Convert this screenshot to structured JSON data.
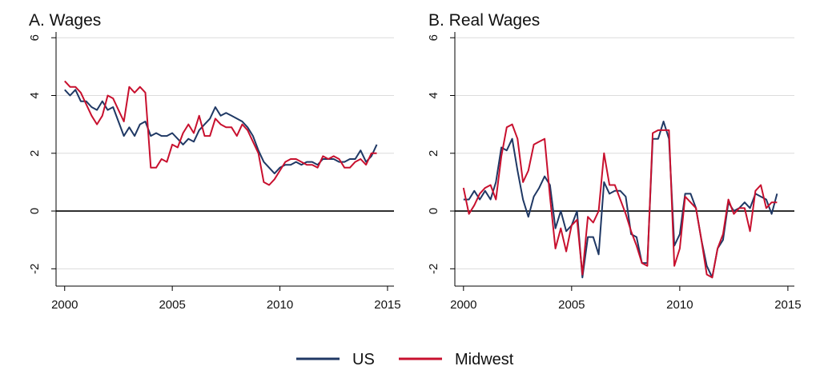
{
  "colors": {
    "us": "#1f3864",
    "midwest": "#c8102e",
    "grid": "#dcdcdc",
    "axis": "#000000",
    "zero": "#000000"
  },
  "legend": {
    "position": "bottom-center",
    "items": [
      {
        "label": "US",
        "color": "#1f3864"
      },
      {
        "label": "Midwest",
        "color": "#c8102e"
      }
    ]
  },
  "chart_data": [
    {
      "type": "line",
      "title": "A. Wages",
      "xlabel": "",
      "ylabel": "",
      "xlim": [
        1999.6,
        2015.3
      ],
      "ylim": [
        -2.6,
        6.2
      ],
      "xticks": [
        2000,
        2005,
        2010,
        2015
      ],
      "yticks": [
        -2,
        0,
        2,
        4,
        6
      ],
      "grid": "horizontal",
      "zero_line": true,
      "series": [
        {
          "name": "US",
          "x": [
            2000,
            2000.25,
            2000.5,
            2000.75,
            2001,
            2001.25,
            2001.5,
            2001.75,
            2002,
            2002.25,
            2002.5,
            2002.75,
            2003,
            2003.25,
            2003.5,
            2003.75,
            2004,
            2004.25,
            2004.5,
            2004.75,
            2005,
            2005.25,
            2005.5,
            2005.75,
            2006,
            2006.25,
            2006.5,
            2006.75,
            2007,
            2007.25,
            2007.5,
            2007.75,
            2008,
            2008.25,
            2008.5,
            2008.75,
            2009,
            2009.25,
            2009.5,
            2009.75,
            2010,
            2010.25,
            2010.5,
            2010.75,
            2011,
            2011.25,
            2011.5,
            2011.75,
            2012,
            2012.25,
            2012.5,
            2012.75,
            2013,
            2013.25,
            2013.5,
            2013.75,
            2014,
            2014.25,
            2014.5
          ],
          "values": [
            4.2,
            4.0,
            4.2,
            3.8,
            3.8,
            3.6,
            3.5,
            3.8,
            3.5,
            3.6,
            3.1,
            2.6,
            2.9,
            2.6,
            3.0,
            3.1,
            2.6,
            2.7,
            2.6,
            2.6,
            2.7,
            2.5,
            2.3,
            2.5,
            2.4,
            2.8,
            3.0,
            3.2,
            3.6,
            3.3,
            3.4,
            3.3,
            3.2,
            3.1,
            2.9,
            2.6,
            2.1,
            1.7,
            1.5,
            1.3,
            1.5,
            1.6,
            1.6,
            1.7,
            1.6,
            1.7,
            1.7,
            1.6,
            1.8,
            1.8,
            1.8,
            1.7,
            1.7,
            1.8,
            1.8,
            2.1,
            1.7,
            1.9,
            2.3
          ]
        },
        {
          "name": "Midwest",
          "x": [
            2000,
            2000.25,
            2000.5,
            2000.75,
            2001,
            2001.25,
            2001.5,
            2001.75,
            2002,
            2002.25,
            2002.5,
            2002.75,
            2003,
            2003.25,
            2003.5,
            2003.75,
            2004,
            2004.25,
            2004.5,
            2004.75,
            2005,
            2005.25,
            2005.5,
            2005.75,
            2006,
            2006.25,
            2006.5,
            2006.75,
            2007,
            2007.25,
            2007.5,
            2007.75,
            2008,
            2008.25,
            2008.5,
            2008.75,
            2009,
            2009.25,
            2009.5,
            2009.75,
            2010,
            2010.25,
            2010.5,
            2010.75,
            2011,
            2011.25,
            2011.5,
            2011.75,
            2012,
            2012.25,
            2012.5,
            2012.75,
            2013,
            2013.25,
            2013.5,
            2013.75,
            2014,
            2014.25,
            2014.5
          ],
          "values": [
            4.5,
            4.3,
            4.3,
            4.1,
            3.7,
            3.3,
            3.0,
            3.3,
            4.0,
            3.9,
            3.5,
            3.1,
            4.3,
            4.1,
            4.3,
            4.1,
            1.5,
            1.5,
            1.8,
            1.7,
            2.3,
            2.2,
            2.7,
            3.0,
            2.7,
            3.3,
            2.6,
            2.6,
            3.2,
            3.0,
            2.9,
            2.9,
            2.6,
            3.0,
            2.8,
            2.4,
            2.0,
            1.0,
            0.9,
            1.1,
            1.4,
            1.7,
            1.8,
            1.8,
            1.7,
            1.6,
            1.6,
            1.5,
            1.9,
            1.8,
            1.9,
            1.8,
            1.5,
            1.5,
            1.7,
            1.8,
            1.6,
            2.0,
            2.0
          ]
        }
      ]
    },
    {
      "type": "line",
      "title": "B. Real Wages",
      "xlabel": "",
      "ylabel": "",
      "xlim": [
        1999.6,
        2015.3
      ],
      "ylim": [
        -2.6,
        6.2
      ],
      "xticks": [
        2000,
        2005,
        2010,
        2015
      ],
      "yticks": [
        -2,
        0,
        2,
        4,
        6
      ],
      "grid": "horizontal",
      "zero_line": true,
      "series": [
        {
          "name": "US",
          "x": [
            2000,
            2000.25,
            2000.5,
            2000.75,
            2001,
            2001.25,
            2001.5,
            2001.75,
            2002,
            2002.25,
            2002.5,
            2002.75,
            2003,
            2003.25,
            2003.5,
            2003.75,
            2004,
            2004.25,
            2004.5,
            2004.75,
            2005,
            2005.25,
            2005.5,
            2005.75,
            2006,
            2006.25,
            2006.5,
            2006.75,
            2007,
            2007.25,
            2007.5,
            2007.75,
            2008,
            2008.25,
            2008.5,
            2008.75,
            2009,
            2009.25,
            2009.5,
            2009.75,
            2010,
            2010.25,
            2010.5,
            2010.75,
            2011,
            2011.25,
            2011.5,
            2011.75,
            2012,
            2012.25,
            2012.5,
            2012.75,
            2013,
            2013.25,
            2013.5,
            2013.75,
            2014,
            2014.25,
            2014.5
          ],
          "values": [
            0.4,
            0.4,
            0.7,
            0.4,
            0.7,
            0.4,
            1.0,
            2.2,
            2.1,
            2.5,
            1.4,
            0.4,
            -0.2,
            0.5,
            0.8,
            1.2,
            0.9,
            -0.6,
            0.0,
            -0.7,
            -0.5,
            0.0,
            -2.3,
            -0.9,
            -0.9,
            -1.5,
            1.0,
            0.6,
            0.7,
            0.7,
            0.5,
            -0.8,
            -0.9,
            -1.8,
            -1.8,
            2.5,
            2.5,
            3.1,
            2.5,
            -1.2,
            -0.8,
            0.6,
            0.6,
            0.1,
            -1.0,
            -1.9,
            -2.3,
            -1.3,
            -1.0,
            0.3,
            0.0,
            0.1,
            0.3,
            0.1,
            0.6,
            0.5,
            0.4,
            -0.1,
            0.6
          ]
        },
        {
          "name": "Midwest",
          "x": [
            2000,
            2000.25,
            2000.5,
            2000.75,
            2001,
            2001.25,
            2001.5,
            2001.75,
            2002,
            2002.25,
            2002.5,
            2002.75,
            2003,
            2003.25,
            2003.5,
            2003.75,
            2004,
            2004.25,
            2004.5,
            2004.75,
            2005,
            2005.25,
            2005.5,
            2005.75,
            2006,
            2006.25,
            2006.5,
            2006.75,
            2007,
            2007.25,
            2007.5,
            2007.75,
            2008,
            2008.25,
            2008.5,
            2008.75,
            2009,
            2009.25,
            2009.5,
            2009.75,
            2010,
            2010.25,
            2010.5,
            2010.75,
            2011,
            2011.25,
            2011.5,
            2011.75,
            2012,
            2012.25,
            2012.5,
            2012.75,
            2013,
            2013.25,
            2013.5,
            2013.75,
            2014,
            2014.25,
            2014.5
          ],
          "values": [
            0.8,
            -0.1,
            0.2,
            0.6,
            0.8,
            0.9,
            0.4,
            1.9,
            2.9,
            3.0,
            2.5,
            1.0,
            1.4,
            2.3,
            2.4,
            2.5,
            0.5,
            -1.3,
            -0.6,
            -1.4,
            -0.5,
            -0.3,
            -2.2,
            -0.2,
            -0.4,
            0.0,
            2.0,
            0.9,
            0.9,
            0.4,
            -0.1,
            -0.7,
            -1.2,
            -1.8,
            -1.9,
            2.7,
            2.8,
            2.8,
            2.8,
            -1.9,
            -1.3,
            0.5,
            0.3,
            0.1,
            -1.0,
            -2.2,
            -2.3,
            -1.3,
            -0.8,
            0.4,
            -0.1,
            0.1,
            0.1,
            -0.7,
            0.7,
            0.9,
            0.1,
            0.3,
            0.3
          ]
        }
      ]
    }
  ]
}
